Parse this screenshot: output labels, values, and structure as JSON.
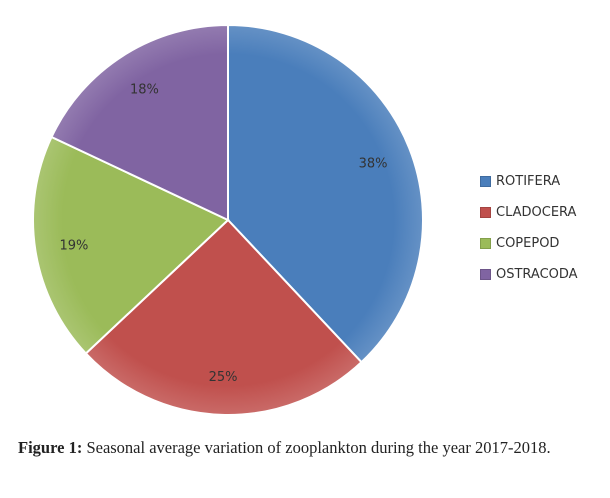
{
  "chart_data": {
    "type": "pie",
    "categories": [
      "ROTIFERA",
      "CLADOCERA",
      "COPEPOD",
      "OSTRACODA"
    ],
    "values": [
      38,
      25,
      19,
      18
    ],
    "labels": [
      "38%",
      "25%",
      "19%",
      "18%"
    ],
    "colors": [
      "#4a7ebb",
      "#c0504d",
      "#9bbb59",
      "#8064a2"
    ],
    "start": "12 o'clock, clockwise",
    "legend_position": "right"
  },
  "caption": {
    "label": "Figure 1:",
    "text": " Seasonal average variation of zooplankton during the year 2017-2018."
  }
}
